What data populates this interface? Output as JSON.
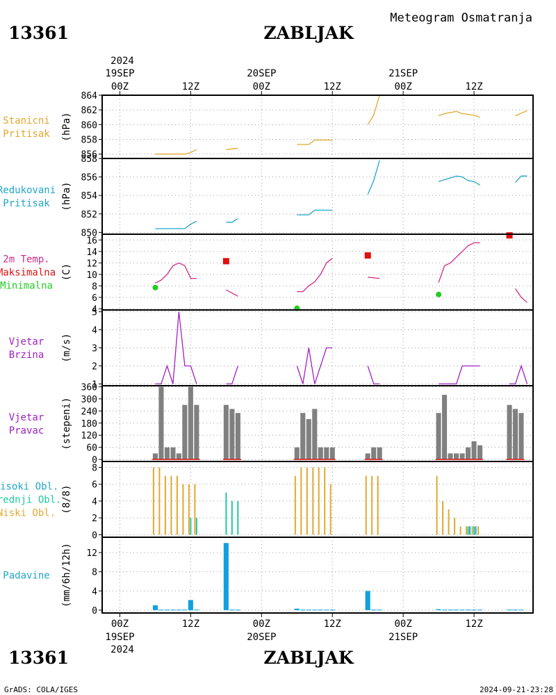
{
  "header": {
    "station_id": "13361",
    "station_name": "ZABLJAK",
    "subtitle": "Meteogram Osmatranja"
  },
  "footer": {
    "left": "GrADS: COLA/IGES",
    "right": "2024-09-21-23:28"
  },
  "time_axis": {
    "top_year": "2024",
    "bottom_year": "2024",
    "ticks": [
      {
        "t": 0,
        "label": "00Z",
        "date": "19SEP"
      },
      {
        "t": 12,
        "label": "12Z",
        "date": ""
      },
      {
        "t": 24,
        "label": "00Z",
        "date": "20SEP"
      },
      {
        "t": 36,
        "label": "12Z",
        "date": ""
      },
      {
        "t": 48,
        "label": "00Z",
        "date": "21SEP"
      },
      {
        "t": 60,
        "label": "12Z",
        "date": ""
      }
    ],
    "range": [
      -3,
      70
    ]
  },
  "colors": {
    "orange": "#e0a830",
    "cyan": "#1ea7c8",
    "magenta": "#d02a86",
    "red": "#e01010",
    "green": "#22cc22",
    "purple": "#a020c0",
    "gray": "#808080",
    "teal": "#20c8a0",
    "blue": "#10a0e0"
  },
  "chart_data": [
    {
      "type": "line",
      "labels": [
        "Stanicni",
        "Pritisak"
      ],
      "label_color": "#e0a830",
      "unit": "(hPa)",
      "ylim": [
        855.4,
        864
      ],
      "yticks": [
        856,
        858,
        860,
        862,
        864
      ],
      "series": [
        {
          "color": "#e0a830",
          "segments": [
            [
              [
                6,
                856
              ],
              [
                11,
                856
              ],
              [
                12,
                856.2
              ],
              [
                13,
                856.6
              ]
            ],
            [
              [
                18,
                856.6
              ],
              [
                20,
                856.8
              ]
            ],
            [
              [
                30,
                857.3
              ],
              [
                32,
                857.3
              ],
              [
                33,
                857.9
              ],
              [
                36,
                857.9
              ]
            ],
            [
              [
                42,
                860
              ],
              [
                43,
                861.3
              ],
              [
                44,
                864
              ]
            ],
            [
              [
                54,
                861.2
              ],
              [
                55,
                861.5
              ],
              [
                57,
                861.8
              ],
              [
                58,
                861.5
              ],
              [
                60,
                861.3
              ],
              [
                61,
                861
              ]
            ],
            [
              [
                67,
                861.2
              ],
              [
                69,
                861.9
              ]
            ]
          ]
        }
      ]
    },
    {
      "type": "line",
      "labels": [
        "Redukovani",
        "Pritisak"
      ],
      "label_color": "#1ea7c8",
      "unit": "(hPa)",
      "ylim": [
        849.8,
        858
      ],
      "yticks": [
        850,
        852,
        854,
        856,
        858
      ],
      "series": [
        {
          "color": "#1ea7c8",
          "segments": [
            [
              [
                6,
                850.4
              ],
              [
                11,
                850.4
              ],
              [
                12,
                850.9
              ],
              [
                13,
                851.2
              ]
            ],
            [
              [
                18,
                851.1
              ],
              [
                19,
                851.1
              ],
              [
                20,
                851.5
              ]
            ],
            [
              [
                30,
                851.9
              ],
              [
                32,
                851.9
              ],
              [
                33,
                852.4
              ],
              [
                36,
                852.4
              ]
            ],
            [
              [
                42,
                854.1
              ],
              [
                43,
                855.6
              ],
              [
                44,
                857.8
              ]
            ],
            [
              [
                54,
                855.5
              ],
              [
                55,
                855.7
              ],
              [
                57,
                856.1
              ],
              [
                58,
                856
              ],
              [
                59,
                855.6
              ],
              [
                60,
                855.5
              ],
              [
                61,
                855.1
              ]
            ],
            [
              [
                67,
                855.4
              ],
              [
                68,
                856.1
              ],
              [
                69,
                856.1
              ]
            ]
          ]
        }
      ]
    },
    {
      "type": "line",
      "labels": [
        "2m Temp.",
        "Maksimalna",
        "Minimalna"
      ],
      "label_colors": [
        "#d02a86",
        "#e01010",
        "#22cc22"
      ],
      "unit": "(C)",
      "ylim": [
        3.8,
        17
      ],
      "yticks": [
        4,
        6,
        8,
        10,
        12,
        14,
        16
      ],
      "series": [
        {
          "color": "#d02a86",
          "segments": [
            [
              [
                6,
                8.5
              ],
              [
                7,
                9
              ],
              [
                8,
                10
              ],
              [
                9,
                11.5
              ],
              [
                10,
                12
              ],
              [
                11,
                11.5
              ],
              [
                12,
                9.3
              ],
              [
                13,
                9.3
              ]
            ],
            [
              [
                18,
                7.3
              ],
              [
                20,
                6.2
              ]
            ],
            [
              [
                30,
                7
              ],
              [
                31,
                7
              ],
              [
                32,
                8
              ],
              [
                33,
                8.7
              ],
              [
                34,
                10
              ],
              [
                35,
                12
              ],
              [
                36,
                12.8
              ]
            ],
            [
              [
                42,
                9.5
              ],
              [
                44,
                9.3
              ]
            ],
            [
              [
                54,
                8.6
              ],
              [
                55,
                11.5
              ],
              [
                56,
                12
              ],
              [
                57,
                13
              ],
              [
                58,
                14
              ],
              [
                59,
                15
              ],
              [
                60,
                15.5
              ],
              [
                61,
                15.5
              ]
            ],
            [
              [
                67,
                7.5
              ],
              [
                68,
                6
              ],
              [
                69,
                5.1
              ]
            ]
          ]
        }
      ],
      "max_points": [
        [
          18,
          12.3
        ],
        [
          42,
          13.3
        ],
        [
          66,
          16.8
        ]
      ],
      "min_points": [
        [
          6,
          7.7
        ],
        [
          30,
          4.1
        ],
        [
          54,
          6.5
        ]
      ]
    },
    {
      "type": "line",
      "labels": [
        "Vjetar",
        "Brzina"
      ],
      "label_color": "#a020c0",
      "unit": "(m/s)",
      "ylim": [
        0.9,
        5.1
      ],
      "yticks": [
        1,
        2,
        3,
        4,
        5
      ],
      "series": [
        {
          "color": "#a020c0",
          "segments": [
            [
              [
                6,
                1
              ],
              [
                7,
                1
              ],
              [
                8,
                2
              ],
              [
                9,
                1
              ],
              [
                10,
                5
              ],
              [
                11,
                2
              ],
              [
                12,
                2
              ],
              [
                13,
                1
              ]
            ],
            [
              [
                18,
                1
              ],
              [
                19,
                1
              ],
              [
                20,
                2
              ]
            ],
            [
              [
                30,
                2
              ],
              [
                31,
                1
              ],
              [
                32,
                3
              ],
              [
                33,
                1
              ],
              [
                35,
                3
              ],
              [
                36,
                3
              ]
            ],
            [
              [
                42,
                2
              ],
              [
                43,
                1
              ],
              [
                44,
                1
              ]
            ],
            [
              [
                54,
                1
              ],
              [
                57,
                1
              ],
              [
                58,
                2
              ],
              [
                61,
                2
              ]
            ],
            [
              [
                66,
                1
              ],
              [
                67,
                1
              ],
              [
                68,
                2
              ],
              [
                69,
                1
              ]
            ]
          ]
        }
      ]
    },
    {
      "type": "bar",
      "labels": [
        "Vjetar",
        "Pravac"
      ],
      "label_color": "#a020c0",
      "unit": "(stepeni)",
      "ylim": [
        -10,
        365
      ],
      "yticks": [
        0,
        60,
        120,
        180,
        240,
        300,
        360
      ],
      "series": [
        {
          "color": "#808080",
          "points": [
            [
              6,
              30
            ],
            [
              7,
              360
            ],
            [
              8,
              60
            ],
            [
              9,
              60
            ],
            [
              10,
              30
            ],
            [
              11,
              270
            ],
            [
              12,
              360
            ],
            [
              13,
              270
            ],
            [
              18,
              270
            ],
            [
              19,
              250
            ],
            [
              20,
              230
            ],
            [
              30,
              60
            ],
            [
              31,
              230
            ],
            [
              32,
              200
            ],
            [
              33,
              250
            ],
            [
              34,
              60
            ],
            [
              35,
              60
            ],
            [
              36,
              60
            ],
            [
              42,
              30
            ],
            [
              43,
              60
            ],
            [
              44,
              60
            ],
            [
              54,
              230
            ],
            [
              55,
              320
            ],
            [
              56,
              30
            ],
            [
              57,
              30
            ],
            [
              58,
              30
            ],
            [
              59,
              60
            ],
            [
              60,
              90
            ],
            [
              61,
              70
            ],
            [
              66,
              270
            ],
            [
              67,
              250
            ],
            [
              68,
              230
            ]
          ]
        }
      ],
      "baseline_color": "#e01010"
    },
    {
      "type": "bar",
      "labels": [
        "Visoki Obl.",
        "Srednji Obl.",
        "Niski Obl."
      ],
      "label_colors": [
        "#1ea7c8",
        "#20c8a0",
        "#e0a830"
      ],
      "unit": "(8/8)",
      "ylim": [
        -0.3,
        8.7
      ],
      "yticks": [
        0,
        2,
        4,
        6,
        8
      ],
      "series": [
        {
          "name": "Niski Obl.",
          "color": "#e0a830",
          "points": [
            [
              6,
              8
            ],
            [
              7,
              8
            ],
            [
              8,
              7
            ],
            [
              9,
              7
            ],
            [
              10,
              7
            ],
            [
              11,
              6
            ],
            [
              12,
              6
            ],
            [
              13,
              6
            ],
            [
              30,
              7
            ],
            [
              31,
              8
            ],
            [
              32,
              8
            ],
            [
              33,
              8
            ],
            [
              34,
              8
            ],
            [
              35,
              8
            ],
            [
              36,
              6
            ],
            [
              42,
              7
            ],
            [
              43,
              7
            ],
            [
              44,
              7
            ],
            [
              54,
              7
            ],
            [
              55,
              4
            ],
            [
              56,
              3
            ],
            [
              57,
              2
            ],
            [
              58,
              1
            ],
            [
              59,
              1
            ],
            [
              60,
              1
            ],
            [
              61,
              1
            ]
          ]
        },
        {
          "name": "Srednji Obl.",
          "color": "#20c8a0",
          "points": [
            [
              12,
              2
            ],
            [
              13,
              2
            ],
            [
              18,
              5
            ],
            [
              19,
              4
            ],
            [
              20,
              4
            ],
            [
              59,
              1
            ],
            [
              60,
              1
            ]
          ]
        },
        {
          "name": "Visoki Obl.",
          "color": "#1ea7c8",
          "points": [
            [
              59,
              1
            ],
            [
              60,
              1
            ]
          ]
        }
      ]
    },
    {
      "type": "bar",
      "labels": [
        "Padavine"
      ],
      "label_color": "#1ea7c8",
      "unit": "(mm/6h/12h)",
      "ylim": [
        -0.6,
        15.2
      ],
      "yticks": [
        0,
        4,
        8,
        12
      ],
      "series": [
        {
          "color": "#10a0e0",
          "points": [
            [
              6,
              1
            ],
            [
              7,
              0.1
            ],
            [
              8,
              0.1
            ],
            [
              9,
              0.1
            ],
            [
              10,
              0.1
            ],
            [
              11,
              0.1
            ],
            [
              12,
              2.1
            ],
            [
              13,
              0.1
            ],
            [
              18,
              14
            ],
            [
              19,
              0.1
            ],
            [
              20,
              0.1
            ],
            [
              30,
              0.3
            ],
            [
              31,
              0.1
            ],
            [
              32,
              0.1
            ],
            [
              33,
              0.1
            ],
            [
              34,
              0.1
            ],
            [
              35,
              0.1
            ],
            [
              36,
              0.1
            ],
            [
              42,
              4
            ],
            [
              43,
              0.1
            ],
            [
              44,
              0.1
            ],
            [
              54,
              0.2
            ],
            [
              55,
              0.1
            ],
            [
              56,
              0.1
            ],
            [
              57,
              0.1
            ],
            [
              58,
              0.1
            ],
            [
              59,
              0.1
            ],
            [
              60,
              0.1
            ],
            [
              61,
              0.1
            ],
            [
              66,
              0.1
            ],
            [
              67,
              0.1
            ],
            [
              68,
              0.1
            ]
          ]
        }
      ]
    }
  ]
}
